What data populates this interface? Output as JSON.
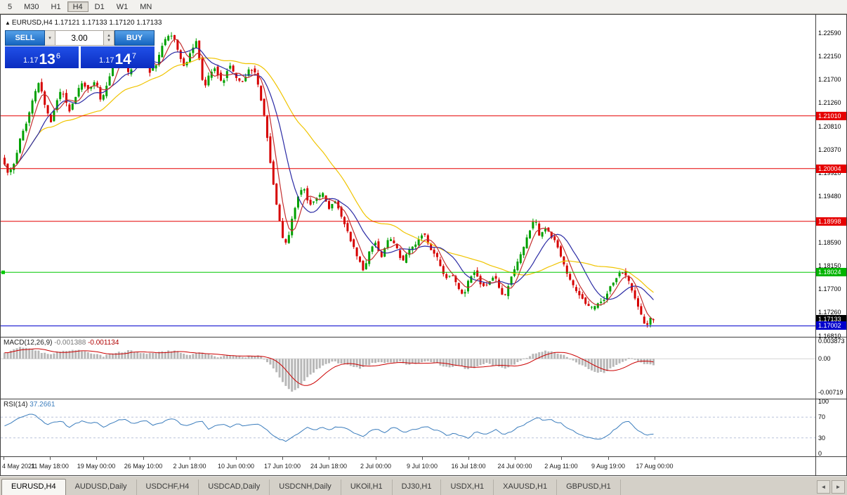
{
  "toolbar": {
    "timeframes": [
      "5",
      "M30",
      "H1",
      "H4",
      "D1",
      "W1",
      "MN"
    ],
    "active_index": 3
  },
  "symbol_header": {
    "marker": "▲",
    "symbol": "EURUSD,H4",
    "ohlc": "1.17121 1.17133 1.17120 1.17133"
  },
  "trade_panel": {
    "sell_label": "SELL",
    "buy_label": "BUY",
    "lot_value": "3.00",
    "lot_dropdown_icon": "▾",
    "spin_up_icon": "▴",
    "spin_down_icon": "▾",
    "sell_price": {
      "prefix": "1.17",
      "big": "13",
      "sup": "6"
    },
    "buy_price": {
      "prefix": "1.17",
      "big": "14",
      "sup": "7"
    }
  },
  "price_axis": {
    "ticks": [
      "1.22590",
      "1.22150",
      "1.21700",
      "1.21260",
      "1.20810",
      "1.20370",
      "1.19920",
      "1.19480",
      "1.18590",
      "1.18150",
      "1.17700",
      "1.17260",
      "1.16810"
    ],
    "line_labels": [
      {
        "text": "1.21010",
        "bg": "#e60000"
      },
      {
        "text": "1.20004",
        "bg": "#e60000"
      },
      {
        "text": "1.18998",
        "bg": "#e60000"
      },
      {
        "text": "1.18024",
        "bg": "#00b400"
      },
      {
        "text": "1.17133",
        "bg": "#000000"
      },
      {
        "text": "1.17002",
        "bg": "#0000cc"
      }
    ]
  },
  "indicators": {
    "macd": {
      "title": "MACD(12,26,9)",
      "value_main": "-0.001388",
      "value_signal": "-0.001134",
      "axis_labels": [
        "0.003873",
        "0.00",
        "-0.00719"
      ]
    },
    "rsi": {
      "title": "RSI(14)",
      "value": "37.2661",
      "axis_labels": [
        "100",
        "70",
        "30",
        "0"
      ],
      "levels": [
        70,
        30
      ]
    }
  },
  "time_axis": {
    "labels": [
      "4 May 2021",
      "11 May 18:00",
      "19 May 00:00",
      "26 May 10:00",
      "2 Jun 18:00",
      "10 Jun 00:00",
      "17 Jun 10:00",
      "24 Jun 18:00",
      "2 Jul 00:00",
      "9 Jul 10:00",
      "16 Jul 18:00",
      "24 Jul 00:00",
      "2 Aug 11:00",
      "9 Aug 19:00",
      "17 Aug 00:00"
    ]
  },
  "tabs": {
    "items": [
      "EURUSD,H4",
      "AUDUSD,Daily",
      "USDCHF,H4",
      "USDCAD,Daily",
      "USDCNH,Daily",
      "UKOil,H1",
      "DJ30,H1",
      "USDX,H1",
      "XAUUSD,H1",
      "GBPUSD,H1"
    ],
    "active_index": 0,
    "scroll_left_icon": "◄",
    "scroll_right_icon": "►"
  },
  "chart_data": {
    "type": "candlestick",
    "symbol": "EURUSD",
    "timeframe": "H4",
    "y_range": [
      1.16794,
      1.2294
    ],
    "colors": {
      "bull": "#00a000",
      "bear": "#d60000",
      "macd_hist": "#b8b8b8",
      "macd_signal": "#cc0000",
      "rsi_line": "#3b7dbd",
      "rsi_levels": "#b9c2d9"
    },
    "moving_averages": [
      {
        "period": 32,
        "color": "#f0c400"
      },
      {
        "period": 12,
        "color": "#2a2aa4"
      },
      {
        "period": 5,
        "color": "#c43030"
      }
    ],
    "hlines": [
      {
        "price": 1.2101,
        "color": "#e60000"
      },
      {
        "price": 1.20004,
        "color": "#e60000"
      },
      {
        "price": 1.18998,
        "color": "#e60000"
      },
      {
        "price": 1.18024,
        "color": "#00c800",
        "anchor": true
      },
      {
        "price": 1.17002,
        "color": "#0000cc"
      }
    ],
    "macd_scale": {
      "max": 0.0046,
      "min": -0.0086
    },
    "price_path": [
      [
        5,
        1.202
      ],
      [
        14,
        1.1988
      ],
      [
        22,
        1.201
      ],
      [
        30,
        1.2055
      ],
      [
        40,
        1.209
      ],
      [
        50,
        1.214
      ],
      [
        58,
        1.2168
      ],
      [
        66,
        1.212
      ],
      [
        74,
        1.2088
      ],
      [
        82,
        1.213
      ],
      [
        90,
        1.2152
      ],
      [
        100,
        1.2108
      ],
      [
        110,
        1.214
      ],
      [
        118,
        1.2165
      ],
      [
        128,
        1.215
      ],
      [
        138,
        1.217
      ],
      [
        146,
        1.2128
      ],
      [
        155,
        1.2165
      ],
      [
        165,
        1.2205
      ],
      [
        175,
        1.2232
      ],
      [
        185,
        1.218
      ],
      [
        195,
        1.221
      ],
      [
        205,
        1.2222
      ],
      [
        215,
        1.2185
      ],
      [
        225,
        1.22
      ],
      [
        235,
        1.2245
      ],
      [
        248,
        1.2258
      ],
      [
        258,
        1.2215
      ],
      [
        265,
        1.219
      ],
      [
        272,
        1.222
      ],
      [
        282,
        1.2245
      ],
      [
        292,
        1.215
      ],
      [
        300,
        1.218
      ],
      [
        308,
        1.2195
      ],
      [
        318,
        1.216
      ],
      [
        328,
        1.22
      ],
      [
        338,
        1.2175
      ],
      [
        348,
        1.2165
      ],
      [
        356,
        1.219
      ],
      [
        364,
        1.2188
      ],
      [
        372,
        1.2145
      ],
      [
        380,
        1.2085
      ],
      [
        388,
        1.2
      ],
      [
        396,
        1.193
      ],
      [
        404,
        1.1868
      ],
      [
        410,
        1.1855
      ],
      [
        418,
        1.1905
      ],
      [
        426,
        1.1948
      ],
      [
        434,
        1.1968
      ],
      [
        442,
        1.193
      ],
      [
        452,
        1.1945
      ],
      [
        462,
        1.1952
      ],
      [
        470,
        1.1925
      ],
      [
        480,
        1.194
      ],
      [
        490,
        1.1902
      ],
      [
        500,
        1.1868
      ],
      [
        510,
        1.1835
      ],
      [
        520,
        1.1805
      ],
      [
        528,
        1.1842
      ],
      [
        536,
        1.1862
      ],
      [
        545,
        1.183
      ],
      [
        555,
        1.1868
      ],
      [
        565,
        1.1855
      ],
      [
        575,
        1.182
      ],
      [
        585,
        1.1848
      ],
      [
        595,
        1.1858
      ],
      [
        605,
        1.188
      ],
      [
        615,
        1.1845
      ],
      [
        625,
        1.1828
      ],
      [
        635,
        1.179
      ],
      [
        645,
        1.1802
      ],
      [
        655,
        1.1772
      ],
      [
        662,
        1.1758
      ],
      [
        670,
        1.179
      ],
      [
        678,
        1.1806
      ],
      [
        688,
        1.1775
      ],
      [
        698,
        1.1782
      ],
      [
        706,
        1.18
      ],
      [
        714,
        1.1765
      ],
      [
        720,
        1.1752
      ],
      [
        728,
        1.1788
      ],
      [
        738,
        1.182
      ],
      [
        748,
        1.1852
      ],
      [
        758,
        1.189
      ],
      [
        764,
        1.1905
      ],
      [
        770,
        1.1868
      ],
      [
        778,
        1.1888
      ],
      [
        786,
        1.1872
      ],
      [
        794,
        1.186
      ],
      [
        802,
        1.1825
      ],
      [
        812,
        1.179
      ],
      [
        822,
        1.1768
      ],
      [
        832,
        1.1752
      ],
      [
        842,
        1.1732
      ],
      [
        852,
        1.174
      ],
      [
        862,
        1.1752
      ],
      [
        872,
        1.1778
      ],
      [
        882,
        1.1798
      ],
      [
        890,
        1.1804
      ],
      [
        898,
        1.1782
      ],
      [
        906,
        1.1752
      ],
      [
        914,
        1.1722
      ],
      [
        921,
        1.1698
      ],
      [
        928,
        1.1713
      ]
    ],
    "macd_path": [
      [
        5,
        0.0012
      ],
      [
        25,
        0.0026
      ],
      [
        45,
        0.002
      ],
      [
        65,
        0.001
      ],
      [
        85,
        0.0016
      ],
      [
        105,
        0.002
      ],
      [
        125,
        0.0012
      ],
      [
        145,
        0.0006
      ],
      [
        165,
        0.0014
      ],
      [
        185,
        0.0018
      ],
      [
        205,
        0.001
      ],
      [
        225,
        0.0014
      ],
      [
        245,
        0.0018
      ],
      [
        265,
        0.0008
      ],
      [
        285,
        0.0014
      ],
      [
        305,
        0.0004
      ],
      [
        325,
        0.0008
      ],
      [
        345,
        0.0004
      ],
      [
        365,
        0.0008
      ],
      [
        378,
        -0.0006
      ],
      [
        390,
        -0.0028
      ],
      [
        402,
        -0.0055
      ],
      [
        412,
        -0.0072
      ],
      [
        424,
        -0.006
      ],
      [
        436,
        -0.004
      ],
      [
        448,
        -0.0024
      ],
      [
        460,
        -0.0012
      ],
      [
        472,
        -0.0006
      ],
      [
        484,
        -0.001
      ],
      [
        496,
        -0.0016
      ],
      [
        510,
        -0.002
      ],
      [
        524,
        -0.0012
      ],
      [
        538,
        -0.0006
      ],
      [
        552,
        -0.001
      ],
      [
        566,
        -0.0006
      ],
      [
        580,
        -0.0014
      ],
      [
        594,
        -0.0008
      ],
      [
        608,
        -0.0004
      ],
      [
        622,
        -0.0012
      ],
      [
        636,
        -0.002
      ],
      [
        650,
        -0.0014
      ],
      [
        662,
        -0.0022
      ],
      [
        676,
        -0.0018
      ],
      [
        690,
        -0.001
      ],
      [
        704,
        -0.0014
      ],
      [
        718,
        -0.002
      ],
      [
        732,
        -0.001
      ],
      [
        746,
        0.0002
      ],
      [
        760,
        0.0012
      ],
      [
        774,
        0.0018
      ],
      [
        788,
        0.0014
      ],
      [
        802,
        0.0006
      ],
      [
        816,
        -0.0006
      ],
      [
        830,
        -0.0018
      ],
      [
        844,
        -0.0028
      ],
      [
        858,
        -0.003
      ],
      [
        872,
        -0.0016
      ],
      [
        886,
        -0.0004
      ],
      [
        895,
        0.0002
      ],
      [
        905,
        -0.0004
      ],
      [
        915,
        -0.001
      ],
      [
        928,
        -0.0014
      ]
    ],
    "rsi_path": [
      [
        5,
        52
      ],
      [
        15,
        60
      ],
      [
        25,
        68
      ],
      [
        35,
        74
      ],
      [
        45,
        77
      ],
      [
        55,
        66
      ],
      [
        65,
        55
      ],
      [
        75,
        60
      ],
      [
        85,
        63
      ],
      [
        95,
        50
      ],
      [
        105,
        58
      ],
      [
        115,
        63
      ],
      [
        125,
        57
      ],
      [
        135,
        61
      ],
      [
        145,
        50
      ],
      [
        155,
        58
      ],
      [
        165,
        64
      ],
      [
        175,
        67
      ],
      [
        185,
        57
      ],
      [
        195,
        61
      ],
      [
        205,
        63
      ],
      [
        215,
        54
      ],
      [
        225,
        58
      ],
      [
        235,
        64
      ],
      [
        245,
        67
      ],
      [
        255,
        56
      ],
      [
        265,
        52
      ],
      [
        275,
        60
      ],
      [
        285,
        63
      ],
      [
        295,
        45
      ],
      [
        305,
        54
      ],
      [
        315,
        57
      ],
      [
        325,
        50
      ],
      [
        335,
        58
      ],
      [
        345,
        53
      ],
      [
        355,
        56
      ],
      [
        365,
        57
      ],
      [
        375,
        48
      ],
      [
        385,
        36
      ],
      [
        395,
        28
      ],
      [
        405,
        24
      ],
      [
        415,
        32
      ],
      [
        425,
        42
      ],
      [
        435,
        50
      ],
      [
        445,
        44
      ],
      [
        455,
        50
      ],
      [
        465,
        46
      ],
      [
        475,
        50
      ],
      [
        485,
        52
      ],
      [
        495,
        44
      ],
      [
        505,
        38
      ],
      [
        515,
        33
      ],
      [
        525,
        44
      ],
      [
        535,
        48
      ],
      [
        545,
        40
      ],
      [
        555,
        50
      ],
      [
        565,
        47
      ],
      [
        575,
        40
      ],
      [
        585,
        46
      ],
      [
        595,
        48
      ],
      [
        605,
        54
      ],
      [
        615,
        46
      ],
      [
        625,
        42
      ],
      [
        635,
        34
      ],
      [
        645,
        40
      ],
      [
        655,
        33
      ],
      [
        665,
        30
      ],
      [
        675,
        42
      ],
      [
        685,
        37
      ],
      [
        695,
        40
      ],
      [
        705,
        46
      ],
      [
        715,
        36
      ],
      [
        725,
        42
      ],
      [
        735,
        50
      ],
      [
        745,
        56
      ],
      [
        755,
        63
      ],
      [
        765,
        70
      ],
      [
        772,
        62
      ],
      [
        780,
        67
      ],
      [
        788,
        61
      ],
      [
        796,
        58
      ],
      [
        804,
        50
      ],
      [
        814,
        43
      ],
      [
        824,
        37
      ],
      [
        834,
        31
      ],
      [
        844,
        27
      ],
      [
        854,
        29
      ],
      [
        864,
        36
      ],
      [
        874,
        48
      ],
      [
        884,
        58
      ],
      [
        892,
        63
      ],
      [
        900,
        52
      ],
      [
        908,
        42
      ],
      [
        916,
        35
      ],
      [
        928,
        37.27
      ]
    ]
  }
}
